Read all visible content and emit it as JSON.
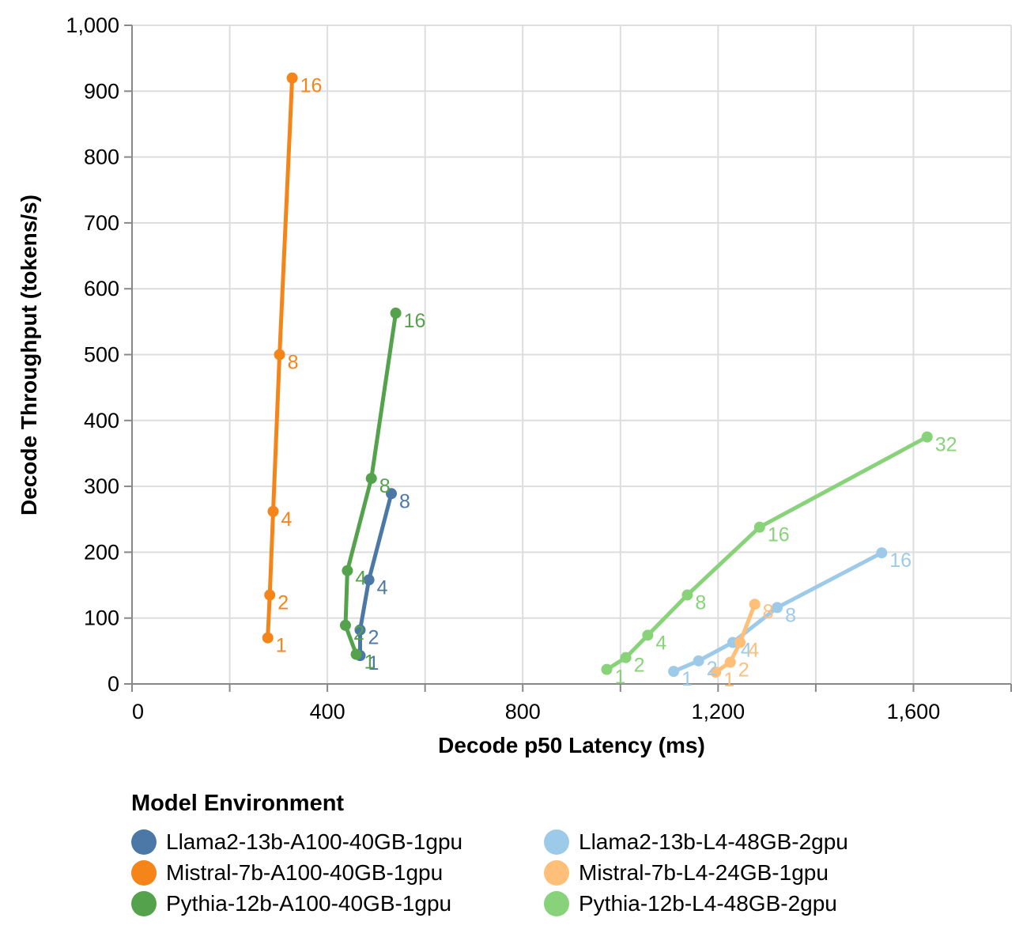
{
  "chart_data": {
    "type": "line",
    "title": "",
    "xlabel": "Decode p50 Latency (ms)",
    "ylabel": "Decode Throughput (tokens/s)",
    "xlim": [
      0,
      1800
    ],
    "ylim": [
      0,
      1000
    ],
    "x_ticks": [
      0,
      400,
      800,
      1200,
      1600
    ],
    "x_tick_labels": [
      "0",
      "400",
      "800",
      "1,200",
      "1,600"
    ],
    "y_ticks": [
      0,
      100,
      200,
      300,
      400,
      500,
      600,
      700,
      800,
      900,
      1000
    ],
    "y_tick_labels": [
      "0",
      "100",
      "200",
      "300",
      "400",
      "500",
      "600",
      "700",
      "800",
      "900",
      "1,000"
    ],
    "grid": true,
    "legend_title": "Model Environment",
    "legend_position": "bottom",
    "series": [
      {
        "name": "Llama2-13b-A100-40GB-1gpu",
        "color": "#4c78a8",
        "points": [
          {
            "x": 467,
            "y": 43,
            "label": "1"
          },
          {
            "x": 467,
            "y": 82,
            "label": "2"
          },
          {
            "x": 485,
            "y": 158,
            "label": "4"
          },
          {
            "x": 531,
            "y": 289,
            "label": "8"
          }
        ]
      },
      {
        "name": "Llama2-13b-L4-48GB-2gpu",
        "color": "#9ecae9",
        "points": [
          {
            "x": 1109,
            "y": 19,
            "label": "1"
          },
          {
            "x": 1160,
            "y": 35,
            "label": "2"
          },
          {
            "x": 1230,
            "y": 63,
            "label": "4"
          },
          {
            "x": 1321,
            "y": 116,
            "label": "8"
          },
          {
            "x": 1535,
            "y": 199,
            "label": "16"
          }
        ]
      },
      {
        "name": "Mistral-7b-A100-40GB-1gpu",
        "color": "#f58518",
        "points": [
          {
            "x": 278,
            "y": 70,
            "label": "1"
          },
          {
            "x": 282,
            "y": 135,
            "label": "2"
          },
          {
            "x": 289,
            "y": 262,
            "label": "4"
          },
          {
            "x": 302,
            "y": 500,
            "label": "8"
          },
          {
            "x": 328,
            "y": 920,
            "label": "16"
          }
        ]
      },
      {
        "name": "Mistral-7b-L4-24GB-1gpu",
        "color": "#ffbf79",
        "points": [
          {
            "x": 1195,
            "y": 18,
            "label": "1"
          },
          {
            "x": 1225,
            "y": 33,
            "label": "2"
          },
          {
            "x": 1245,
            "y": 63,
            "label": "4"
          },
          {
            "x": 1275,
            "y": 121,
            "label": "8"
          }
        ]
      },
      {
        "name": "Pythia-12b-A100-40GB-1gpu",
        "color": "#54a24b",
        "points": [
          {
            "x": 459,
            "y": 45,
            "label": "1"
          },
          {
            "x": 437,
            "y": 89,
            "label": "2"
          },
          {
            "x": 441,
            "y": 172,
            "label": "4"
          },
          {
            "x": 490,
            "y": 312,
            "label": "8"
          },
          {
            "x": 540,
            "y": 563,
            "label": "16"
          }
        ]
      },
      {
        "name": "Pythia-12b-L4-48GB-2gpu",
        "color": "#88d27a",
        "points": [
          {
            "x": 972,
            "y": 22,
            "label": "1"
          },
          {
            "x": 1011,
            "y": 40,
            "label": "2"
          },
          {
            "x": 1056,
            "y": 74,
            "label": "4"
          },
          {
            "x": 1137,
            "y": 135,
            "label": "8"
          },
          {
            "x": 1285,
            "y": 238,
            "label": "16"
          },
          {
            "x": 1628,
            "y": 375,
            "label": "32"
          }
        ]
      }
    ]
  },
  "legend": {
    "title": "Model Environment",
    "items": [
      {
        "label": "Llama2-13b-A100-40GB-1gpu",
        "color": "#4c78a8"
      },
      {
        "label": "Llama2-13b-L4-48GB-2gpu",
        "color": "#9ecae9"
      },
      {
        "label": "Mistral-7b-A100-40GB-1gpu",
        "color": "#f58518"
      },
      {
        "label": "Mistral-7b-L4-24GB-1gpu",
        "color": "#ffbf79"
      },
      {
        "label": "Pythia-12b-A100-40GB-1gpu",
        "color": "#54a24b"
      },
      {
        "label": "Pythia-12b-L4-48GB-2gpu",
        "color": "#88d27a"
      }
    ]
  }
}
